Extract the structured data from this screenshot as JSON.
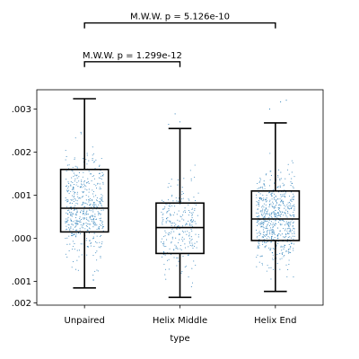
{
  "chart_data": {
    "type": "box",
    "xlabel": "type",
    "ylabel": "",
    "ylim": [
      -0.00205,
      0.00295
    ],
    "y_ticks": [
      {
        "value": 0.0025,
        "label": ".003"
      },
      {
        "value": 0.0015,
        "label": ".002"
      },
      {
        "value": 0.0005,
        "label": ".001"
      },
      {
        "value": -0.0005,
        "label": ".000"
      },
      {
        "value": -0.0015,
        "label": ".001"
      },
      {
        "value": -0.002,
        "label": ".002"
      }
    ],
    "categories": [
      "Unpaired",
      "Helix Middle",
      "Helix End"
    ],
    "boxes": [
      {
        "category": "Unpaired",
        "whisker_low": -0.00165,
        "q1": -0.00035,
        "median": 0.0002,
        "q3": 0.0011,
        "whisker_high": 0.00315
      },
      {
        "category": "Helix Middle",
        "whisker_low": -0.00187,
        "q1": -0.00085,
        "median": -0.00025,
        "q3": 0.00032,
        "whisker_high": 0.00205
      },
      {
        "category": "Helix End",
        "whisker_low": -0.00173,
        "q1": -0.00055,
        "median": -5e-05,
        "q3": 0.0006,
        "whisker_high": 0.00218
      }
    ],
    "points_color": "#1f77b4",
    "box_color": "#000000",
    "annotations": [
      {
        "text": "M.W.W. p = 1.299e-12",
        "from": "Unpaired",
        "to": "Helix Middle",
        "level": 0.0036
      },
      {
        "text": "M.W.W. p = 5.126e-10",
        "from": "Unpaired",
        "to": "Helix End",
        "level": 0.0045
      }
    ],
    "grid": false
  }
}
